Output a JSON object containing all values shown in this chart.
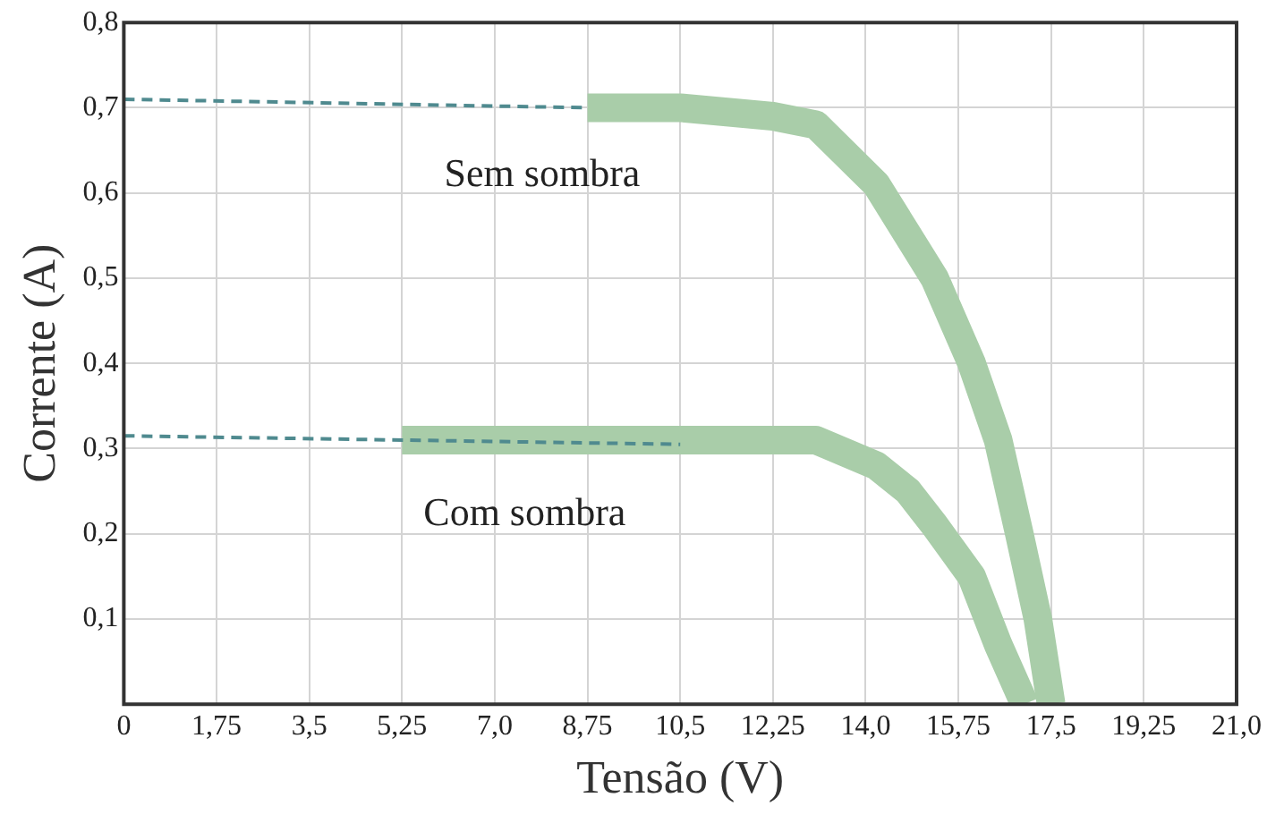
{
  "chart_data": {
    "type": "line",
    "xlabel": "Tensão (V)",
    "ylabel": "Corrente (A)",
    "xlim": [
      0,
      21
    ],
    "ylim": [
      0,
      0.8
    ],
    "xticks": [
      0,
      {
        "value": 1.75,
        "label": "1,75"
      },
      {
        "value": 3.5,
        "label": "3,5"
      },
      {
        "value": 5.25,
        "label": "5,25"
      },
      {
        "value": 7,
        "label": "7,0"
      },
      {
        "value": 8.75,
        "label": "8,75"
      },
      {
        "value": 10.5,
        "label": "10,5"
      },
      {
        "value": 12.25,
        "label": "12,25"
      },
      {
        "value": 14,
        "label": "14,0"
      },
      {
        "value": 15.75,
        "label": "15,75"
      },
      {
        "value": 17.5,
        "label": "17,5"
      },
      {
        "value": 19.25,
        "label": "19,25"
      },
      {
        "value": 21,
        "label": "21,0"
      }
    ],
    "yticks": [
      {
        "value": 0,
        "label": null
      },
      {
        "value": 0.1,
        "label": "0,1"
      },
      {
        "value": 0.2,
        "label": "0,2"
      },
      {
        "value": 0.3,
        "label": "0,3"
      },
      {
        "value": 0.4,
        "label": "0,4"
      },
      {
        "value": 0.5,
        "label": "0,5"
      },
      {
        "value": 0.6,
        "label": "0,6"
      },
      {
        "value": 0.7,
        "label": "0,7"
      },
      {
        "value": 0.8,
        "label": "0,8"
      }
    ],
    "grid": true,
    "legend": false,
    "marker": "none",
    "series": [
      {
        "name": "Sem sombra",
        "color": "#a9cda9",
        "x": [
          8.75,
          10.5,
          12.25,
          13.06,
          14.2,
          15.3,
          16.0,
          16.5,
          16.9,
          17.25,
          17.5
        ],
        "values": [
          0.7,
          0.7,
          0.69,
          0.68,
          0.61,
          0.5,
          0.4,
          0.31,
          0.2,
          0.1,
          0
        ]
      },
      {
        "name": "Com sombra",
        "color": "#a9cda9",
        "x": [
          5.25,
          7,
          8.75,
          10.5,
          12.25,
          13.06,
          14.2,
          14.8,
          15.3,
          16.0,
          16.5,
          17.0
        ],
        "values": [
          0.31,
          0.31,
          0.31,
          0.31,
          0.31,
          0.31,
          0.28,
          0.25,
          0.21,
          0.15,
          0.07,
          0
        ]
      },
      {
        "color": "#4f8a8f",
        "line_style": "dashed",
        "x": [
          0,
          8.75
        ],
        "values": [
          0.71,
          0.7
        ]
      },
      {
        "color": "#4f8a8f",
        "line_style": "dashed",
        "x": [
          0,
          10.5
        ],
        "values": [
          0.315,
          0.305
        ]
      }
    ]
  }
}
